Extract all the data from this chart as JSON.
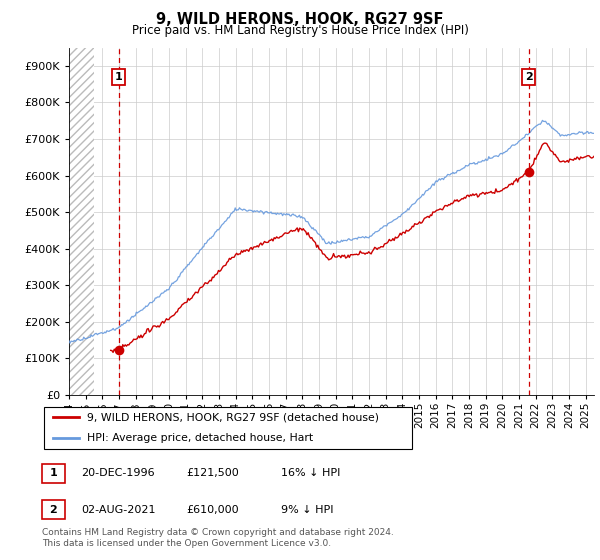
{
  "title": "9, WILD HERONS, HOOK, RG27 9SF",
  "subtitle": "Price paid vs. HM Land Registry's House Price Index (HPI)",
  "ylim": [
    0,
    950000
  ],
  "yticks": [
    0,
    100000,
    200000,
    300000,
    400000,
    500000,
    600000,
    700000,
    800000,
    900000
  ],
  "ytick_labels": [
    "£0",
    "£100K",
    "£200K",
    "£300K",
    "£400K",
    "£500K",
    "£600K",
    "£700K",
    "£800K",
    "£900K"
  ],
  "xmin_year": 1994,
  "xmax_year": 2025.5,
  "xtick_years": [
    1994,
    1995,
    1996,
    1997,
    1998,
    1999,
    2000,
    2001,
    2002,
    2003,
    2004,
    2005,
    2006,
    2007,
    2008,
    2009,
    2010,
    2011,
    2012,
    2013,
    2014,
    2015,
    2016,
    2017,
    2018,
    2019,
    2020,
    2021,
    2022,
    2023,
    2024,
    2025
  ],
  "hpi_color": "#6699DD",
  "price_color": "#CC0000",
  "point1_x": 1996.97,
  "point1_y": 121500,
  "point2_x": 2021.58,
  "point2_y": 610000,
  "legend_line1": "9, WILD HERONS, HOOK, RG27 9SF (detached house)",
  "legend_line2": "HPI: Average price, detached house, Hart",
  "table_row1": [
    "1",
    "20-DEC-1996",
    "£121,500",
    "16% ↓ HPI"
  ],
  "table_row2": [
    "2",
    "02-AUG-2021",
    "£610,000",
    "9% ↓ HPI"
  ],
  "footer": "Contains HM Land Registry data © Crown copyright and database right 2024.\nThis data is licensed under the Open Government Licence v3.0.",
  "grid_color": "#CCCCCC"
}
